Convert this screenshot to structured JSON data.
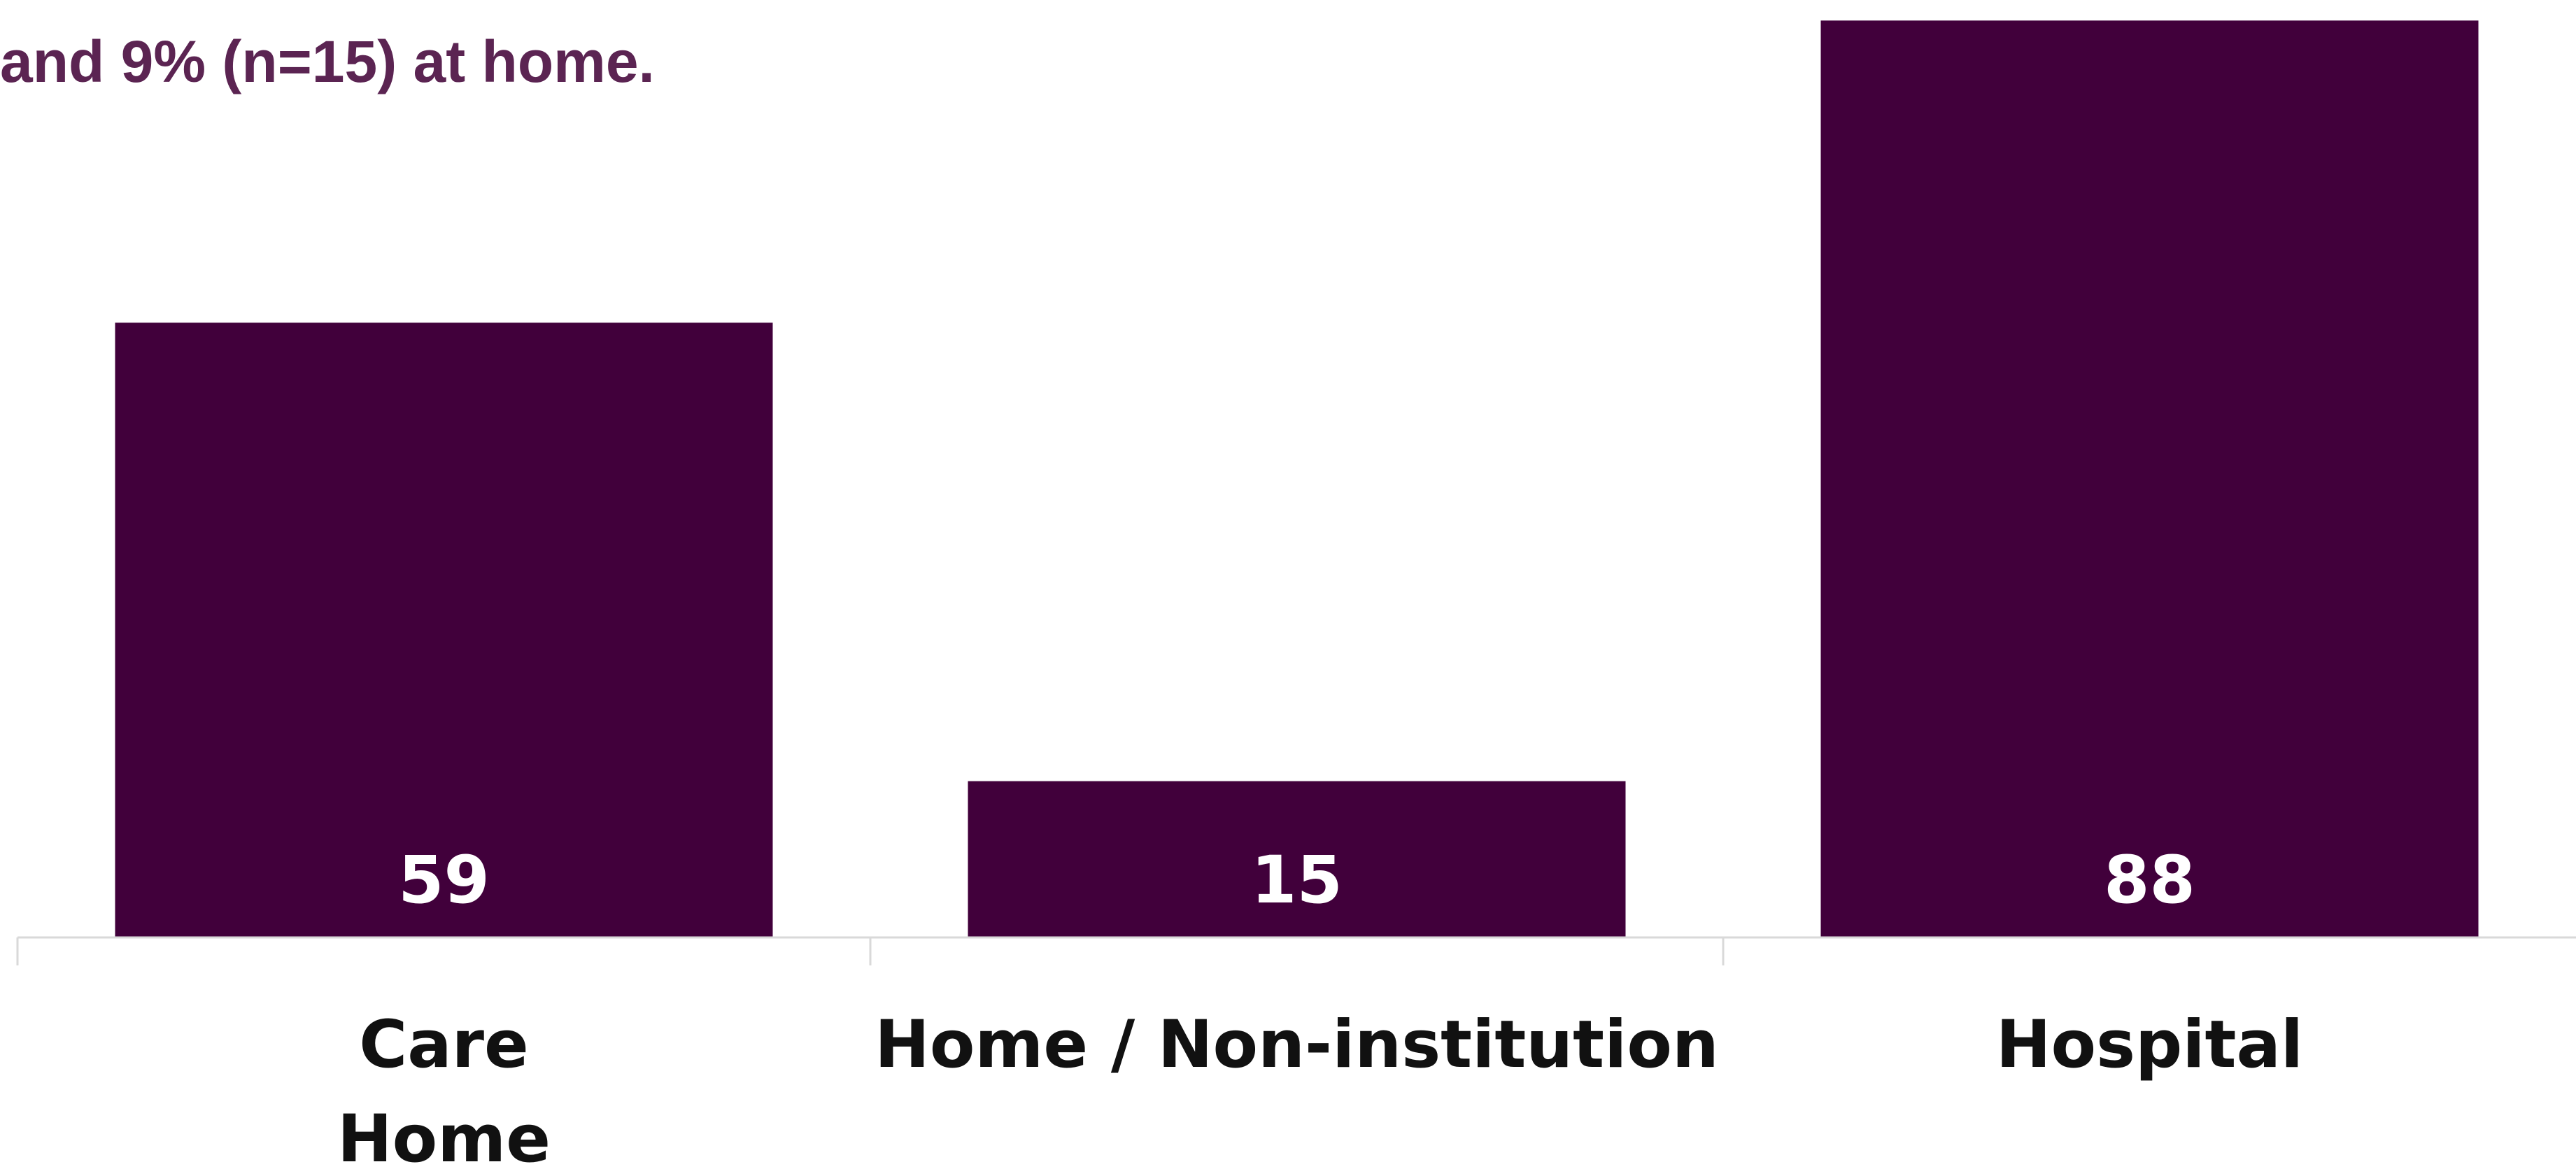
{
  "headline": "and 9% (n=15) at home.",
  "chart_data": {
    "type": "bar",
    "categories": [
      [
        "Care",
        "Home"
      ],
      [
        "Home / Non-institution"
      ],
      [
        "Hospital"
      ]
    ],
    "values": [
      59,
      15,
      88
    ],
    "data_labels": [
      "59",
      "15",
      "88"
    ],
    "ylim": [
      0,
      89.3
    ],
    "grid": false,
    "legend": "none",
    "colors": {
      "bar": "#41003b",
      "label": "#ffffff",
      "axis": "#d9d9d9",
      "headline": "#5b2452"
    }
  }
}
